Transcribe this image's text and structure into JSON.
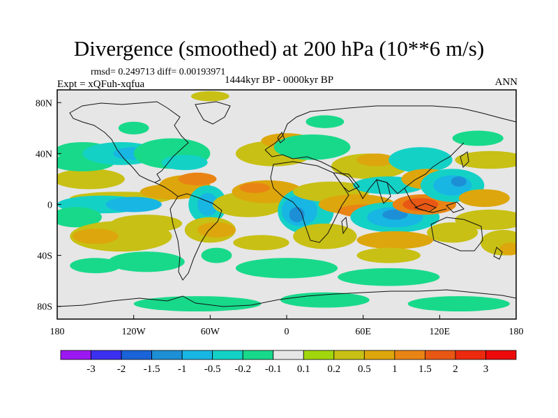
{
  "chart_data": {
    "type": "heatmap",
    "title": "Divergence (smoothed) at 200 hPa (10**6 m/s)",
    "stats_label": "rmsd= 0.249713 diff= 0.00193971",
    "experiment_label": "Expt = xQFuh-xqfua",
    "period_label": "1444kyr BP - 0000kyr BP",
    "season_label": "ANN",
    "x_axis": {
      "range": [
        -180,
        180
      ],
      "ticks": [
        "180",
        "120W",
        "60W",
        "0",
        "60E",
        "120E",
        "180"
      ],
      "tick_values": [
        -180,
        -120,
        -60,
        0,
        60,
        120,
        180
      ]
    },
    "y_axis": {
      "range": [
        -90,
        90
      ],
      "ticks": [
        "80N",
        "40N",
        "0",
        "40S",
        "80S"
      ],
      "tick_values": [
        80,
        40,
        0,
        -40,
        -80
      ]
    },
    "colorbar": {
      "labels": [
        "-3",
        "-2",
        "-1.5",
        "-1",
        "-0.5",
        "-0.2",
        "-0.1",
        "0.1",
        "0.2",
        "0.5",
        "1",
        "1.5",
        "2",
        "3"
      ],
      "colors": [
        "#9b19f0",
        "#3b2ff0",
        "#1a63d8",
        "#1d8fd6",
        "#18b6e3",
        "#14d1c6",
        "#18d98a",
        "#e6e6e6",
        "#a2d60c",
        "#c8c014",
        "#dda60c",
        "#e98414",
        "#e85814",
        "#ec2a0e",
        "#ee0a0a"
      ]
    },
    "features": [
      {
        "lon": -155,
        "lat": 20,
        "rx": 28,
        "ry": 8,
        "level": "0.2"
      },
      {
        "lon": -130,
        "lat": 5,
        "rx": 40,
        "ry": 5,
        "level": "0.2"
      },
      {
        "lon": -90,
        "lat": 10,
        "rx": 25,
        "ry": 6,
        "level": "0.5"
      },
      {
        "lon": -160,
        "lat": 33,
        "rx": 25,
        "ry": 7,
        "level": "-0.1"
      },
      {
        "lon": -160,
        "lat": 42,
        "rx": 22,
        "ry": 7,
        "level": "-0.1"
      },
      {
        "lon": -130,
        "lat": 40,
        "rx": 30,
        "ry": 9,
        "level": "-0.2"
      },
      {
        "lon": -120,
        "lat": 40,
        "rx": 16,
        "ry": 5,
        "level": "-0.5"
      },
      {
        "lon": -90,
        "lat": 40,
        "rx": 30,
        "ry": 12,
        "level": "-0.1"
      },
      {
        "lon": -80,
        "lat": 33,
        "rx": 18,
        "ry": 6,
        "level": "-0.2"
      },
      {
        "lon": -145,
        "lat": 0,
        "rx": 35,
        "ry": 7,
        "level": "-0.2"
      },
      {
        "lon": -120,
        "lat": 0,
        "rx": 22,
        "ry": 6,
        "level": "-0.5"
      },
      {
        "lon": -165,
        "lat": -10,
        "rx": 20,
        "ry": 8,
        "level": "-0.1"
      },
      {
        "lon": -110,
        "lat": -15,
        "rx": 28,
        "ry": 7,
        "level": "0.2"
      },
      {
        "lon": -130,
        "lat": -25,
        "rx": 40,
        "ry": 12,
        "level": "0.2"
      },
      {
        "lon": -150,
        "lat": -25,
        "rx": 18,
        "ry": 6,
        "level": "0.5"
      },
      {
        "lon": -80,
        "lat": 15,
        "rx": 20,
        "ry": 8,
        "level": "0.5"
      },
      {
        "lon": -70,
        "lat": 20,
        "rx": 15,
        "ry": 5,
        "level": "1"
      },
      {
        "lon": -62,
        "lat": 0,
        "rx": 15,
        "ry": 15,
        "level": "-0.2"
      },
      {
        "lon": -62,
        "lat": 0,
        "rx": 8,
        "ry": 9,
        "level": "-0.5"
      },
      {
        "lon": -60,
        "lat": -20,
        "rx": 20,
        "ry": 10,
        "level": "0.2"
      },
      {
        "lon": -55,
        "lat": -20,
        "rx": 15,
        "ry": 6,
        "level": "0.5"
      },
      {
        "lon": -55,
        "lat": -40,
        "rx": 12,
        "ry": 6,
        "level": "-0.1"
      },
      {
        "lon": -30,
        "lat": 0,
        "rx": 28,
        "ry": 10,
        "level": "0.2"
      },
      {
        "lon": -15,
        "lat": 10,
        "rx": 28,
        "ry": 9,
        "level": "0.5"
      },
      {
        "lon": -25,
        "lat": 13,
        "rx": 12,
        "ry": 4,
        "level": "1"
      },
      {
        "lon": -20,
        "lat": -30,
        "rx": 22,
        "ry": 6,
        "level": "0.2"
      },
      {
        "lon": -10,
        "lat": 40,
        "rx": 30,
        "ry": 10,
        "level": "0.2"
      },
      {
        "lon": 0,
        "lat": 50,
        "rx": 20,
        "ry": 6,
        "level": "0.5"
      },
      {
        "lon": 20,
        "lat": 45,
        "rx": 30,
        "ry": 10,
        "level": "-0.1"
      },
      {
        "lon": 30,
        "lat": 65,
        "rx": 15,
        "ry": 5,
        "level": "-0.1"
      },
      {
        "lon": 15,
        "lat": -5,
        "rx": 22,
        "ry": 18,
        "level": "-0.2"
      },
      {
        "lon": 10,
        "lat": -5,
        "rx": 14,
        "ry": 12,
        "level": "-0.5"
      },
      {
        "lon": 8,
        "lat": -8,
        "rx": 6,
        "ry": 6,
        "level": "-1"
      },
      {
        "lon": 30,
        "lat": -25,
        "rx": 25,
        "ry": 10,
        "level": "0.2"
      },
      {
        "lon": 35,
        "lat": 10,
        "rx": 30,
        "ry": 8,
        "level": "0.2"
      },
      {
        "lon": 55,
        "lat": 0,
        "rx": 30,
        "ry": 8,
        "level": "0.5"
      },
      {
        "lon": 60,
        "lat": -5,
        "rx": 20,
        "ry": 5,
        "level": "1"
      },
      {
        "lon": 65,
        "lat": 30,
        "rx": 30,
        "ry": 10,
        "level": "0.2"
      },
      {
        "lon": 70,
        "lat": 35,
        "rx": 15,
        "ry": 5,
        "level": "0.5"
      },
      {
        "lon": 80,
        "lat": 15,
        "rx": 28,
        "ry": 7,
        "level": "-0.2"
      },
      {
        "lon": 85,
        "lat": -10,
        "rx": 35,
        "ry": 12,
        "level": "-0.2"
      },
      {
        "lon": 85,
        "lat": -10,
        "rx": 22,
        "ry": 8,
        "level": "-0.5"
      },
      {
        "lon": 85,
        "lat": -8,
        "rx": 10,
        "ry": 4,
        "level": "-1"
      },
      {
        "lon": 85,
        "lat": -28,
        "rx": 30,
        "ry": 7,
        "level": "0.5"
      },
      {
        "lon": 80,
        "lat": -40,
        "rx": 25,
        "ry": 6,
        "level": "0.2"
      },
      {
        "lon": 105,
        "lat": 35,
        "rx": 25,
        "ry": 10,
        "level": "-0.2"
      },
      {
        "lon": 110,
        "lat": 20,
        "rx": 20,
        "ry": 8,
        "level": "0.5"
      },
      {
        "lon": 108,
        "lat": 0,
        "rx": 25,
        "ry": 8,
        "level": "1"
      },
      {
        "lon": 105,
        "lat": 0,
        "rx": 14,
        "ry": 5,
        "level": "1.5"
      },
      {
        "lon": 130,
        "lat": 15,
        "rx": 25,
        "ry": 13,
        "level": "-0.2"
      },
      {
        "lon": 130,
        "lat": 15,
        "rx": 15,
        "ry": 8,
        "level": "-0.5"
      },
      {
        "lon": 135,
        "lat": 18,
        "rx": 6,
        "ry": 4,
        "level": "-1"
      },
      {
        "lon": 155,
        "lat": 5,
        "rx": 20,
        "ry": 7,
        "level": "0.5"
      },
      {
        "lon": 160,
        "lat": -12,
        "rx": 28,
        "ry": 8,
        "level": "0.2"
      },
      {
        "lon": 130,
        "lat": -22,
        "rx": 20,
        "ry": 8,
        "level": "0.2"
      },
      {
        "lon": 160,
        "lat": 35,
        "rx": 28,
        "ry": 7,
        "level": "0.2"
      },
      {
        "lon": 150,
        "lat": 52,
        "rx": 20,
        "ry": 6,
        "level": "-0.1"
      },
      {
        "lon": 170,
        "lat": -30,
        "rx": 18,
        "ry": 10,
        "level": "0.2"
      },
      {
        "lon": 175,
        "lat": -35,
        "rx": 8,
        "ry": 5,
        "level": "0.5"
      },
      {
        "lon": -110,
        "lat": -45,
        "rx": 30,
        "ry": 8,
        "level": "-0.1"
      },
      {
        "lon": -150,
        "lat": -48,
        "rx": 20,
        "ry": 6,
        "level": "-0.1"
      },
      {
        "lon": 0,
        "lat": -50,
        "rx": 40,
        "ry": 8,
        "level": "-0.1"
      },
      {
        "lon": 80,
        "lat": -57,
        "rx": 40,
        "ry": 7,
        "level": "-0.1"
      },
      {
        "lon": -70,
        "lat": -78,
        "rx": 50,
        "ry": 6,
        "level": "-0.1"
      },
      {
        "lon": 30,
        "lat": -75,
        "rx": 35,
        "ry": 6,
        "level": "-0.1"
      },
      {
        "lon": 135,
        "lat": -78,
        "rx": 40,
        "ry": 6,
        "level": "-0.1"
      },
      {
        "lon": -60,
        "lat": 85,
        "rx": 15,
        "ry": 4,
        "level": "0.2"
      },
      {
        "lon": -120,
        "lat": 60,
        "rx": 12,
        "ry": 5,
        "level": "-0.1"
      }
    ]
  }
}
